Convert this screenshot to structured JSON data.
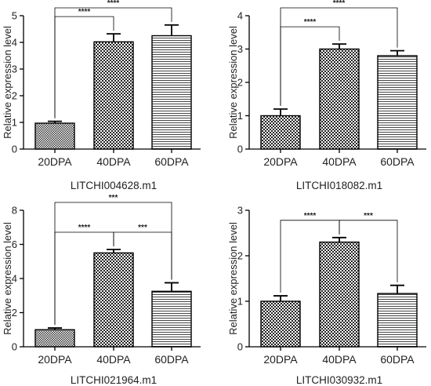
{
  "chart_data": [
    {
      "type": "bar",
      "title": "LITCHI004628.m1",
      "ylabel": "Relative expression level",
      "xlabel": "",
      "categories": [
        "20DPA",
        "40DPA",
        "60DPA"
      ],
      "values": [
        0.97,
        4.02,
        4.25
      ],
      "errors": [
        0.07,
        0.3,
        0.4
      ],
      "patterns": [
        "checker-fine",
        "checker",
        "hstripes"
      ],
      "ylim": [
        0,
        5
      ],
      "yticks": [
        "0",
        "1",
        "2",
        "3",
        "4",
        "5"
      ],
      "significance": [
        {
          "from": 0,
          "to": 1,
          "label": "****"
        },
        {
          "from": 0,
          "to": 2,
          "label": "****"
        }
      ]
    },
    {
      "type": "bar",
      "title": "LITCHI018082.m1",
      "ylabel": "Relative expression level",
      "xlabel": "",
      "categories": [
        "20DPA",
        "40DPA",
        "60DPA"
      ],
      "values": [
        1.0,
        3.0,
        2.8
      ],
      "errors": [
        0.2,
        0.15,
        0.15
      ],
      "patterns": [
        "checker",
        "checker",
        "hstripes"
      ],
      "ylim": [
        0,
        4
      ],
      "yticks": [
        "0",
        "1",
        "2",
        "3",
        "4"
      ],
      "significance": [
        {
          "from": 0,
          "to": 1,
          "label": "****"
        },
        {
          "from": 0,
          "to": 2,
          "label": "****"
        }
      ]
    },
    {
      "type": "bar",
      "title": "LITCHI021964.m1",
      "ylabel": "Relative expression level",
      "xlabel": "",
      "categories": [
        "20DPA",
        "40DPA",
        "60DPA"
      ],
      "values": [
        1.0,
        5.5,
        3.25
      ],
      "errors": [
        0.1,
        0.2,
        0.5
      ],
      "patterns": [
        "checker-fine",
        "checker",
        "hstripes"
      ],
      "ylim": [
        0,
        8
      ],
      "yticks": [
        "0",
        "2",
        "4",
        "6",
        "8"
      ],
      "significance": [
        {
          "from": 0,
          "to": 1,
          "label": "****"
        },
        {
          "from": 1,
          "to": 2,
          "label": "***"
        },
        {
          "from": 0,
          "to": 2,
          "label": "***"
        }
      ]
    },
    {
      "type": "bar",
      "title": "LITCHI030932.m1",
      "ylabel": "Relative expression level",
      "xlabel": "",
      "categories": [
        "20DPA",
        "40DPA",
        "60DPA"
      ],
      "values": [
        1.0,
        2.3,
        1.17
      ],
      "errors": [
        0.12,
        0.1,
        0.18
      ],
      "patterns": [
        "checker",
        "checker",
        "hstripes"
      ],
      "ylim": [
        0,
        3
      ],
      "yticks": [
        "0",
        "1",
        "2",
        "3"
      ],
      "significance": [
        {
          "from": 0,
          "to": 1,
          "label": "****"
        },
        {
          "from": 1,
          "to": 2,
          "label": "***"
        }
      ]
    }
  ]
}
